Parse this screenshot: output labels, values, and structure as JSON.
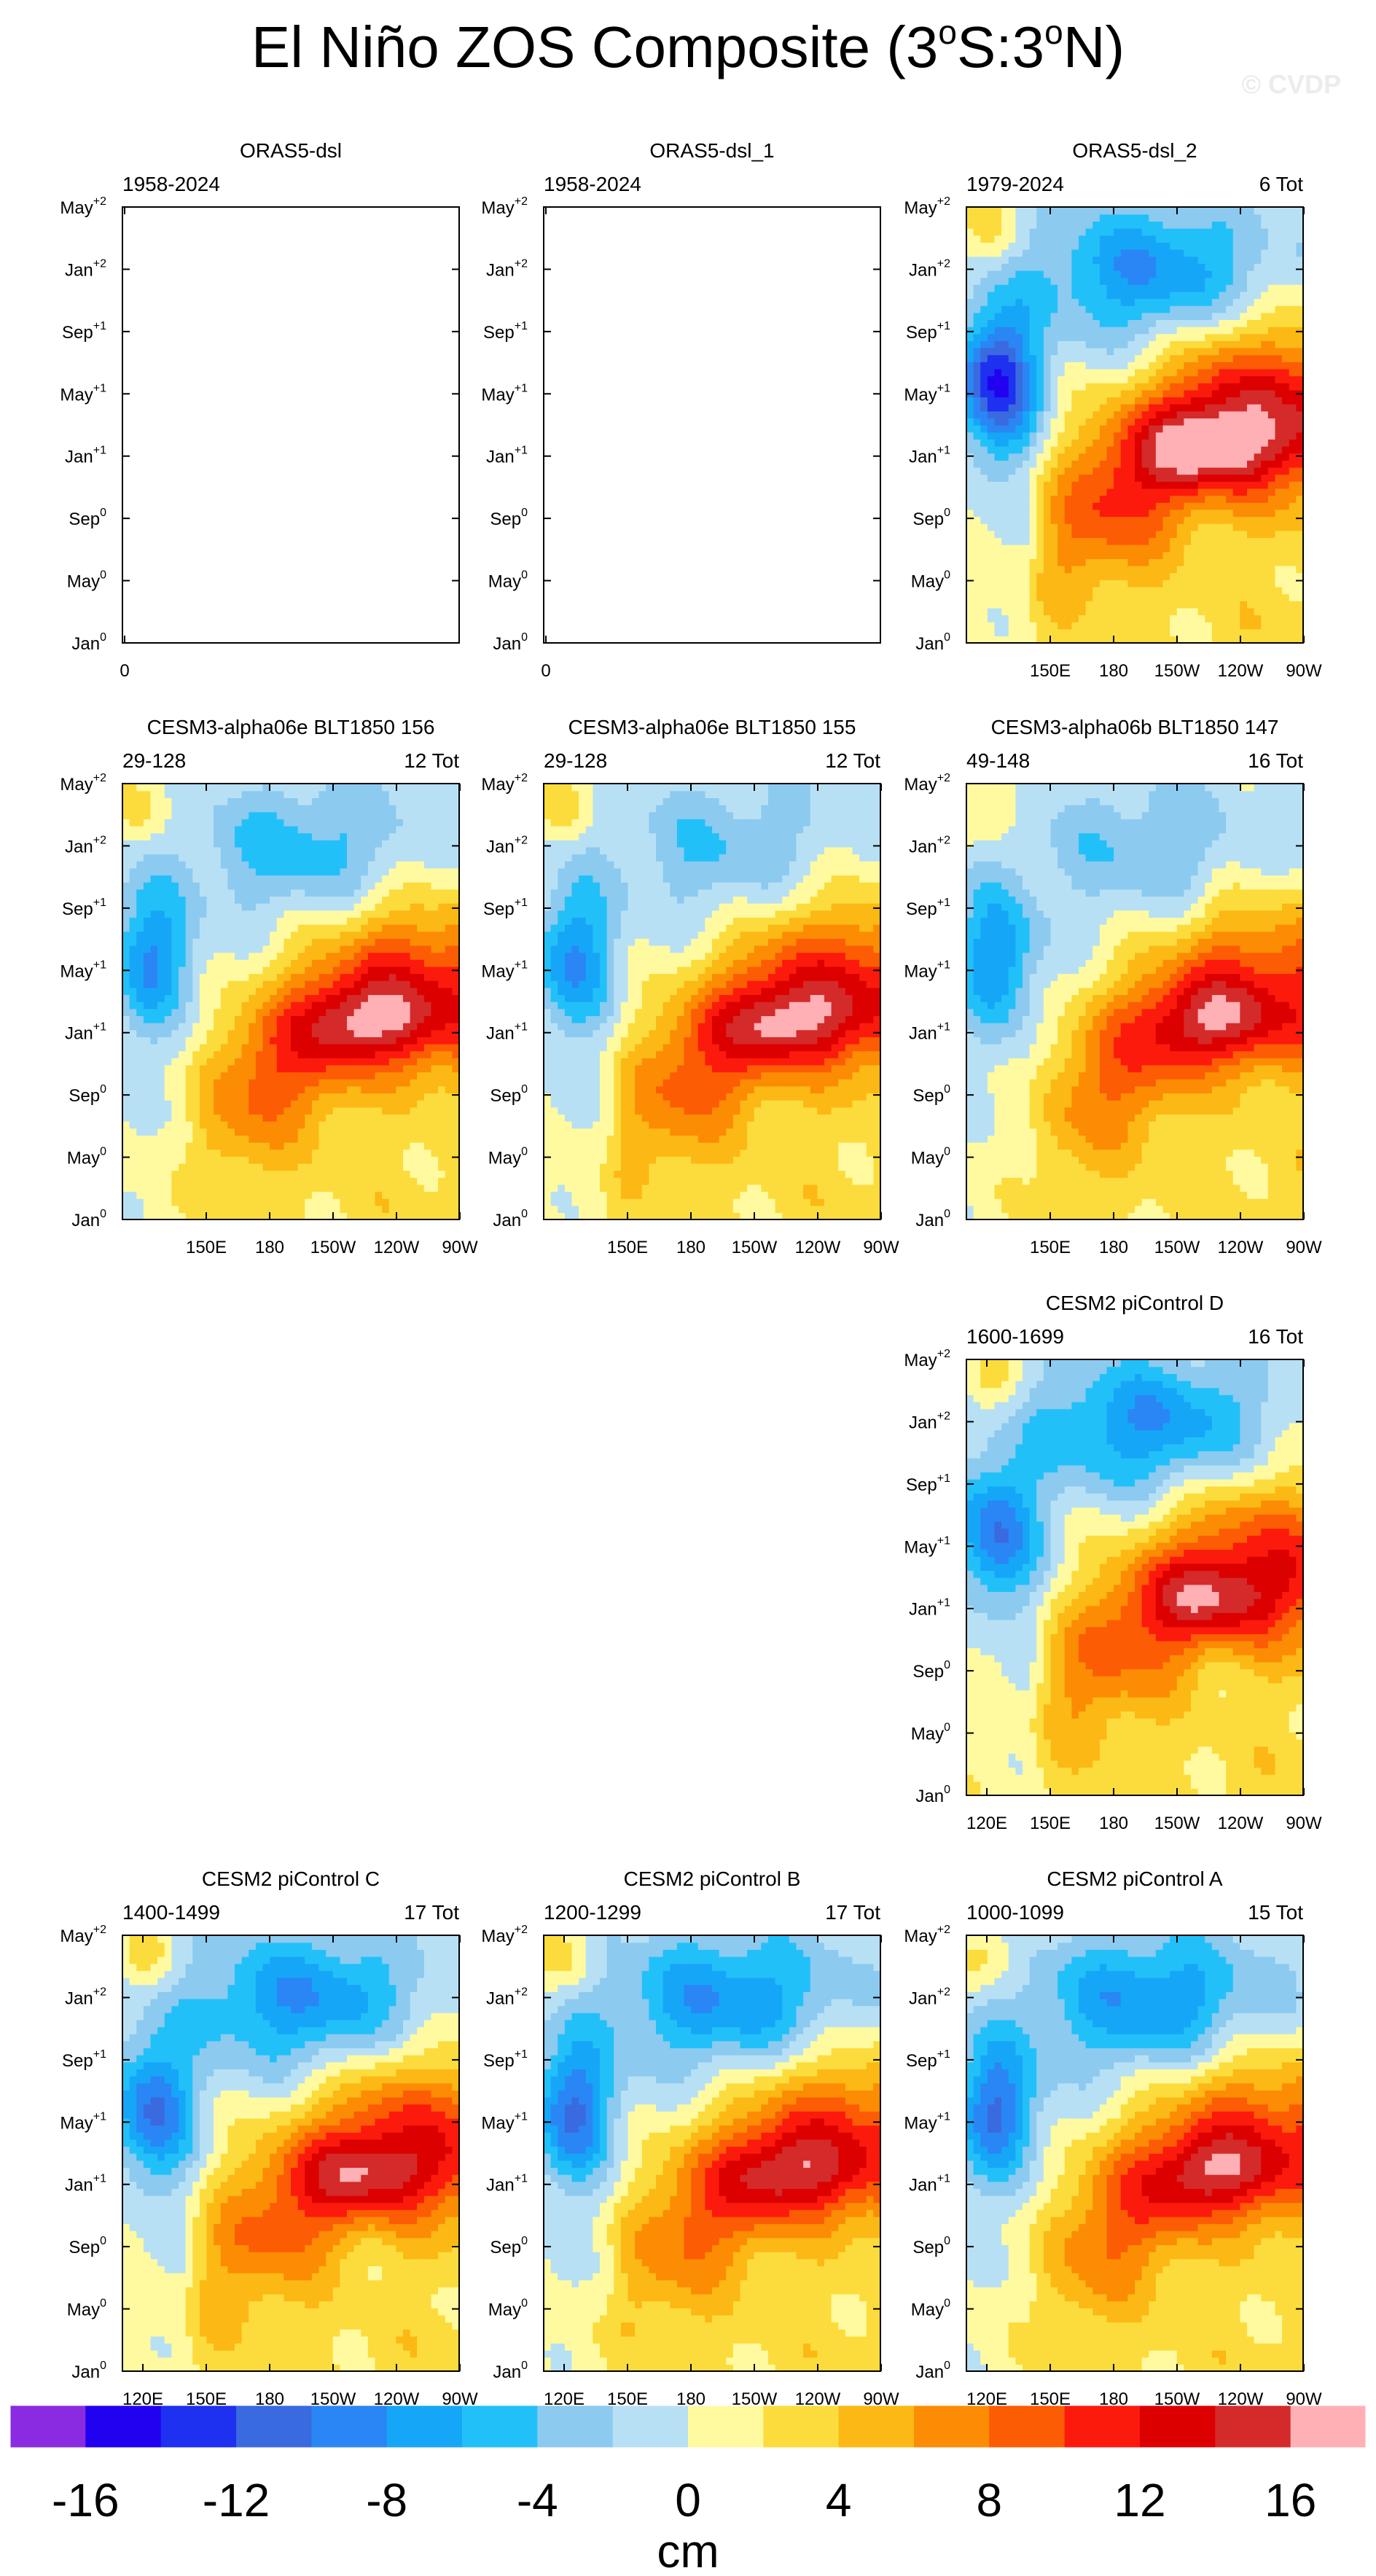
{
  "figure": {
    "title_text": "El Niño ZOS Composite (3",
    "title_s": "S:3",
    "title_n": "N)",
    "title_degree": "o",
    "watermark": "© CVDP"
  },
  "chart_data": {
    "type": "heatmap",
    "y_ticks": [
      {
        "label": "May",
        "sup": "+2"
      },
      {
        "label": "Jan",
        "sup": "+2"
      },
      {
        "label": "Sep",
        "sup": "+1"
      },
      {
        "label": "May",
        "sup": "+1"
      },
      {
        "label": "Jan",
        "sup": "+1"
      },
      {
        "label": "Sep",
        "sup": "0"
      },
      {
        "label": "May",
        "sup": "0"
      },
      {
        "label": "Jan",
        "sup": "0"
      }
    ],
    "x_ticks_full": [
      "120E",
      "150E",
      "180",
      "150W",
      "120W",
      "90W"
    ],
    "x_ticks_partial": [
      "150E",
      "180",
      "150W",
      "120W",
      "90W"
    ],
    "x_ticks_empty": [
      "0"
    ],
    "panels": [
      {
        "id": "oras5-dsl",
        "title": "ORAS5-dsl",
        "years": "1958-2024",
        "count": "",
        "empty": true,
        "xt": "empty"
      },
      {
        "id": "oras5-dsl-1",
        "title": "ORAS5-dsl_1",
        "years": "1958-2024",
        "count": "",
        "empty": true,
        "xt": "empty"
      },
      {
        "id": "oras5-dsl-2",
        "title": "ORAS5-dsl_2",
        "years": "1979-2024",
        "count": "6 Tot",
        "xt": "partial",
        "peak": 16,
        "west": -14,
        "later": -8,
        "alt": 0.35
      },
      {
        "id": "cesm3-156",
        "title": "CESM3-alpha06e BLT1850 156",
        "years": "29-128",
        "count": "12 Tot",
        "xt": "partial",
        "peak": 14,
        "west": -8,
        "later": -5,
        "alt": 0.55
      },
      {
        "id": "cesm3-155",
        "title": "CESM3-alpha06e BLT1850 155",
        "years": "29-128",
        "count": "12 Tot",
        "xt": "partial",
        "peak": 14,
        "west": -8,
        "later": -4,
        "alt": 0.45
      },
      {
        "id": "cesm3-147",
        "title": "CESM3-alpha06b BLT1850 147",
        "years": "49-148",
        "count": "16 Tot",
        "xt": "partial",
        "peak": 13,
        "west": -8,
        "later": -4,
        "alt": 0.7
      },
      {
        "id": "cesm2-d",
        "title": "CESM2 piControl D",
        "years": "1600-1699",
        "count": "16 Tot",
        "xt": "full",
        "peak": 13,
        "west": -10,
        "later": -8,
        "alt": 0.2
      },
      {
        "id": "cesm2-c",
        "title": "CESM2 piControl C",
        "years": "1400-1499",
        "count": "17 Tot",
        "xt": "full",
        "peak": 13,
        "west": -10,
        "later": -8,
        "alt": 0.3
      },
      {
        "id": "cesm2-b",
        "title": "CESM2 piControl B",
        "years": "1200-1299",
        "count": "17 Tot",
        "xt": "full",
        "peak": 13,
        "west": -10,
        "later": -8,
        "alt": 0.5
      },
      {
        "id": "cesm2-a",
        "title": "CESM2 piControl A",
        "years": "1000-1099",
        "count": "15 Tot",
        "xt": "full",
        "peak": 13,
        "west": -10,
        "later": -8,
        "alt": 0.6
      }
    ],
    "colorbar": {
      "unit": "cm",
      "labels": [
        "-16",
        "-12",
        "-8",
        "-4",
        "0",
        "4",
        "8",
        "12",
        "16"
      ],
      "colors": [
        "#8a2be2",
        "#2200f0",
        "#1e30f0",
        "#3a6ae0",
        "#2a86f4",
        "#16a6f8",
        "#22c0f8",
        "#8ccaf0",
        "#b8e0f4",
        "#fffaa0",
        "#fcdc3c",
        "#fcb814",
        "#fc8c04",
        "#fc5c04",
        "#fc1a0c",
        "#dc0000",
        "#d42a2a",
        "#ffb0b4"
      ]
    }
  }
}
